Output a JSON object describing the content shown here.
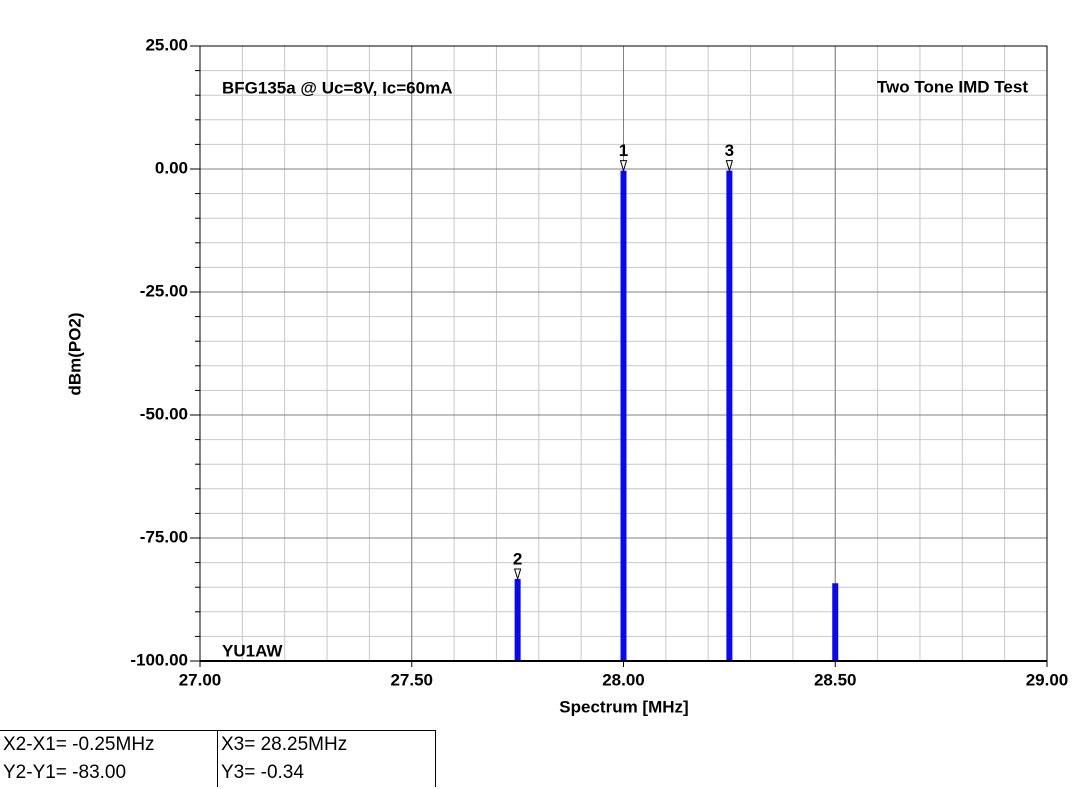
{
  "chart_data": {
    "type": "bar",
    "annotations": [
      "BFG135a @ Uc=8V, Ic=60mA",
      "Two Tone IMD Test",
      "YU1AW"
    ],
    "x_label": "Spectrum [MHz]",
    "y_label": "dBm(PO2)",
    "x": [
      27.75,
      28.0,
      28.25,
      28.5
    ],
    "values": [
      -83.34,
      -0.34,
      -0.34,
      -84.2
    ],
    "marker_labels": [
      "2",
      "1",
      "3",
      null
    ],
    "color": "#0a0ae6",
    "xlim": [
      27.0,
      29.0
    ],
    "ylim": [
      -100,
      25
    ],
    "xticks": [
      {
        "value": 27.0,
        "label": "27.00"
      },
      {
        "value": 27.5,
        "label": "27.50"
      },
      {
        "value": 28.0,
        "label": "28.00"
      },
      {
        "value": 28.5,
        "label": "28.50"
      },
      {
        "value": 29.0,
        "label": "29.00"
      }
    ],
    "yticks": [
      {
        "value": -100,
        "label": "-100.00"
      },
      {
        "value": -75,
        "label": "-75.00"
      },
      {
        "value": -50,
        "label": "-50.00"
      },
      {
        "value": -25,
        "label": "-25.00"
      },
      {
        "value": 0,
        "label": "0.00"
      },
      {
        "value": 25,
        "label": "25.00"
      }
    ],
    "minor_grid": {
      "x_step": 0.1,
      "y_step": 5
    },
    "grid": true
  },
  "readout": [
    [
      "X2-X1= -0.25MHz",
      "X3= 28.25MHz"
    ],
    [
      "Y2-Y1= -83.00",
      "Y3= -0.34"
    ]
  ]
}
